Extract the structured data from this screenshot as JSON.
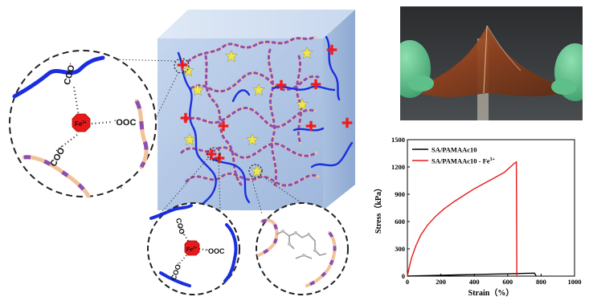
{
  "figure": {
    "ion_label": "Fe",
    "ion_charge": "3+",
    "carboxylate_label": "COO",
    "carboxylate_charge": "-",
    "carboxylate_reverse": "OOC"
  },
  "colors": {
    "cube_fill": "#b8cbe6",
    "sa_chain": "#1a2ee0",
    "pamaac_chain_a": "#f2c29a",
    "pamaac_chain_b": "#8a4fb0",
    "crosslink_cross": "#ee1c1c",
    "hydrogen_bond_star": "#f0e64a",
    "fe_ion": "#e8191a",
    "glove": "#5fbf8a"
  },
  "chart_data": {
    "type": "line",
    "xlabel": "Strain（%）",
    "ylabel": "Stress（kPa）",
    "xlim": [
      0,
      1000
    ],
    "ylim": [
      0,
      1500
    ],
    "xticks": [
      "0",
      "200",
      "400",
      "600",
      "800",
      "1000"
    ],
    "yticks": [
      "0",
      "300",
      "600",
      "900",
      "1200",
      "1500"
    ],
    "legend_position": "top-left",
    "series": [
      {
        "name": "SA/PAMAAc10",
        "color": "#000000",
        "x": [
          0,
          100,
          200,
          300,
          400,
          500,
          600,
          700,
          760,
          765,
          770
        ],
        "y": [
          0,
          5,
          9,
          13,
          17,
          21,
          25,
          30,
          33,
          20,
          0
        ]
      },
      {
        "name": "SA/PAMAAc10 - Fe",
        "name_sup": "3+",
        "color": "#e8191a",
        "x": [
          0,
          10,
          25,
          50,
          80,
          120,
          170,
          220,
          280,
          340,
          400,
          460,
          520,
          580,
          640,
          652,
          655
        ],
        "y": [
          0,
          90,
          200,
          330,
          450,
          560,
          660,
          740,
          820,
          890,
          960,
          1020,
          1080,
          1140,
          1240,
          1255,
          0
        ]
      }
    ]
  }
}
